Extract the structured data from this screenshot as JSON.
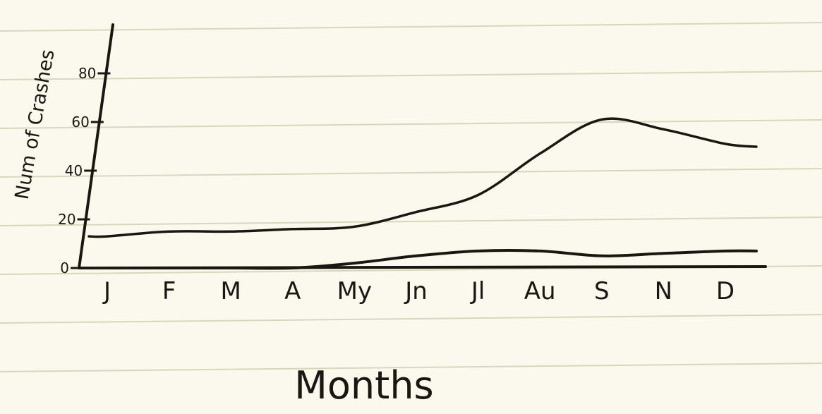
{
  "chart_data": {
    "type": "line",
    "title": "",
    "xlabel": "Months",
    "ylabel": "Num of Crashes",
    "categories": [
      "J",
      "F",
      "M",
      "A",
      "My",
      "Jn",
      "Jl",
      "Au",
      "S",
      "N",
      "D"
    ],
    "yticks": [
      0,
      20,
      40,
      60,
      80
    ],
    "ylim": [
      0,
      80
    ],
    "grid": false,
    "legend": "none",
    "series": [
      {
        "values": [
          13,
          15,
          15,
          16,
          17,
          23,
          30,
          47,
          61,
          57,
          51
        ]
      },
      {
        "values": [
          0,
          0,
          0,
          0,
          2,
          5,
          7,
          7,
          5,
          6,
          7
        ]
      }
    ]
  },
  "colors": {
    "ink": "#1c1612",
    "paper": "#fbf9ee",
    "rule_line": "#d9d6bd"
  }
}
